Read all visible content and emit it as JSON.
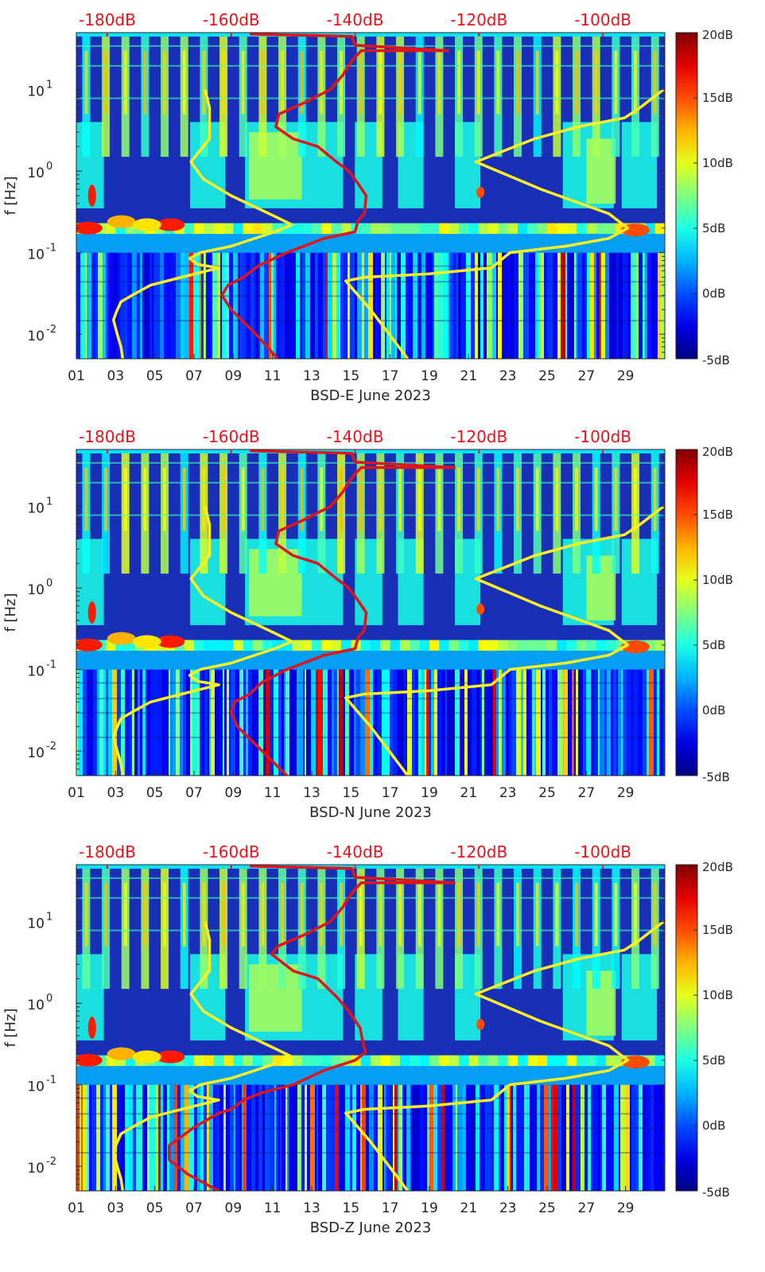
{
  "chart_data": [
    {
      "type": "heatmap",
      "xlabel": "BSD-E June 2023",
      "ylabel": "f [Hz]",
      "xticks": [
        "01",
        "03",
        "05",
        "07",
        "09",
        "11",
        "13",
        "15",
        "17",
        "19",
        "21",
        "23",
        "25",
        "27",
        "29"
      ],
      "yticks": [
        {
          "base": "10",
          "exp": "-2"
        },
        {
          "base": "10",
          "exp": "-1"
        },
        {
          "base": "10",
          "exp": "0"
        },
        {
          "base": "10",
          "exp": "1"
        }
      ],
      "yscale": "log",
      "xlim": [
        1,
        31
      ],
      "ylim": [
        0.005,
        50
      ],
      "top_axis_ticks": [
        "-180dB",
        "-160dB",
        "-140dB",
        "-120dB",
        "-100dB"
      ],
      "top_axis_range_db": [
        -185,
        -90
      ],
      "colorbar_ticks": [
        "20dB",
        "15dB",
        "10dB",
        "5dB",
        "0dB",
        "-5dB"
      ],
      "clim_db": [
        -5,
        20
      ],
      "series": [
        {
          "color": "#ffee22",
          "points": [
            [
              -177.5,
              0.005
            ],
            [
              -177.8,
              0.007
            ],
            [
              -178.4,
              0.01
            ],
            [
              -179.0,
              0.015
            ],
            [
              -178.5,
              0.019
            ],
            [
              -177.8,
              0.025
            ],
            [
              -176,
              0.03
            ],
            [
              -173,
              0.04
            ],
            [
              -168,
              0.05
            ],
            [
              -162,
              0.065
            ],
            [
              -165.5,
              0.072
            ],
            [
              -166.7,
              0.085
            ],
            [
              -165,
              0.1
            ],
            [
              -160,
              0.12
            ],
            [
              -153,
              0.18
            ],
            [
              -150.2,
              0.22
            ],
            [
              -153,
              0.28
            ],
            [
              -160,
              0.5
            ],
            [
              -164.5,
              0.8
            ],
            [
              -166.5,
              1.3
            ],
            [
              -163.5,
              2.5
            ],
            [
              -163.5,
              6
            ],
            [
              -164.2,
              10
            ]
          ]
        },
        {
          "color": "#ffee22",
          "points": [
            [
              -131.5,
              0.005
            ],
            [
              -134.5,
              0.01
            ],
            [
              -137.5,
              0.02
            ],
            [
              -141.5,
              0.045
            ],
            [
              -138.5,
              0.05
            ],
            [
              -128,
              0.055
            ],
            [
              -118,
              0.065
            ],
            [
              -115,
              0.1
            ],
            [
              -106,
              0.12
            ],
            [
              -99,
              0.15
            ],
            [
              -96,
              0.2
            ],
            [
              -99,
              0.3
            ],
            [
              -110,
              0.6
            ],
            [
              -120.5,
              1.3
            ],
            [
              -111,
              2.5
            ],
            [
              -104,
              3.5
            ],
            [
              -96.5,
              4.5
            ],
            [
              -94,
              6
            ],
            [
              -90.2,
              10
            ]
          ]
        },
        {
          "color": "#e0141a",
          "points": [
            [
              -152.5,
              0.005
            ],
            [
              -156,
              0.01
            ],
            [
              -160,
              0.02
            ],
            [
              -161.5,
              0.03
            ],
            [
              -160.5,
              0.04
            ],
            [
              -158,
              0.05
            ],
            [
              -155.5,
              0.07
            ],
            [
              -151,
              0.1
            ],
            [
              -145,
              0.15
            ],
            [
              -140,
              0.18
            ],
            [
              -139.5,
              0.25
            ],
            [
              -138.5,
              0.3
            ],
            [
              -138.2,
              0.5
            ],
            [
              -139.5,
              0.7
            ],
            [
              -141,
              1.0
            ],
            [
              -143,
              1.3
            ],
            [
              -146,
              2.0
            ],
            [
              -150,
              2.5
            ],
            [
              -152.8,
              3.5
            ],
            [
              -152.3,
              5.0
            ],
            [
              -148,
              7.0
            ],
            [
              -144,
              10
            ],
            [
              -142,
              15
            ],
            [
              -141,
              20
            ],
            [
              -140,
              25
            ],
            [
              -139,
              30
            ],
            [
              -125,
              30
            ],
            [
              -140,
              35
            ],
            [
              -140.5,
              45
            ],
            [
              -157,
              48
            ]
          ]
        }
      ]
    },
    {
      "type": "heatmap",
      "xlabel": "BSD-N June 2023",
      "ylabel": "f [Hz]",
      "xticks": [
        "01",
        "03",
        "05",
        "07",
        "09",
        "11",
        "13",
        "15",
        "17",
        "19",
        "21",
        "23",
        "25",
        "27",
        "29"
      ],
      "yticks": [
        {
          "base": "10",
          "exp": "-2"
        },
        {
          "base": "10",
          "exp": "-1"
        },
        {
          "base": "10",
          "exp": "0"
        },
        {
          "base": "10",
          "exp": "1"
        }
      ],
      "yscale": "log",
      "xlim": [
        1,
        31
      ],
      "ylim": [
        0.005,
        50
      ],
      "top_axis_ticks": [
        "-180dB",
        "-160dB",
        "-140dB",
        "-120dB",
        "-100dB"
      ],
      "top_axis_range_db": [
        -185,
        -90
      ],
      "colorbar_ticks": [
        "20dB",
        "15dB",
        "10dB",
        "5dB",
        "0dB",
        "-5dB"
      ],
      "clim_db": [
        -5,
        20
      ],
      "series": [
        {
          "color": "#ffee22",
          "points": [
            [
              -177.5,
              0.005
            ],
            [
              -177.8,
              0.007
            ],
            [
              -178.4,
              0.01
            ],
            [
              -179.0,
              0.015
            ],
            [
              -178.5,
              0.019
            ],
            [
              -177.8,
              0.025
            ],
            [
              -176,
              0.03
            ],
            [
              -173,
              0.04
            ],
            [
              -168,
              0.05
            ],
            [
              -162,
              0.065
            ],
            [
              -165.5,
              0.072
            ],
            [
              -166.7,
              0.085
            ],
            [
              -165,
              0.1
            ],
            [
              -160,
              0.12
            ],
            [
              -153,
              0.18
            ],
            [
              -150.2,
              0.22
            ],
            [
              -153,
              0.28
            ],
            [
              -160,
              0.5
            ],
            [
              -164.5,
              0.8
            ],
            [
              -166.5,
              1.3
            ],
            [
              -163.5,
              2.5
            ],
            [
              -163.5,
              6
            ],
            [
              -164.2,
              10
            ]
          ]
        },
        {
          "color": "#ffee22",
          "points": [
            [
              -131.5,
              0.005
            ],
            [
              -134.5,
              0.01
            ],
            [
              -137.5,
              0.02
            ],
            [
              -141.5,
              0.045
            ],
            [
              -138.5,
              0.05
            ],
            [
              -128,
              0.055
            ],
            [
              -118,
              0.065
            ],
            [
              -115,
              0.1
            ],
            [
              -106,
              0.12
            ],
            [
              -99,
              0.15
            ],
            [
              -96,
              0.2
            ],
            [
              -99,
              0.3
            ],
            [
              -110,
              0.6
            ],
            [
              -120.5,
              1.3
            ],
            [
              -111,
              2.5
            ],
            [
              -104,
              3.5
            ],
            [
              -96.5,
              4.5
            ],
            [
              -94,
              6
            ],
            [
              -90.2,
              10
            ]
          ]
        },
        {
          "color": "#e0141a",
          "points": [
            [
              -151,
              0.005
            ],
            [
              -155,
              0.01
            ],
            [
              -159,
              0.02
            ],
            [
              -160,
              0.03
            ],
            [
              -159.5,
              0.04
            ],
            [
              -157,
              0.05
            ],
            [
              -155,
              0.07
            ],
            [
              -151,
              0.1
            ],
            [
              -145,
              0.15
            ],
            [
              -140,
              0.18
            ],
            [
              -139.5,
              0.25
            ],
            [
              -138.5,
              0.3
            ],
            [
              -138.2,
              0.5
            ],
            [
              -139.5,
              0.7
            ],
            [
              -141,
              1.0
            ],
            [
              -143,
              1.3
            ],
            [
              -146,
              2.0
            ],
            [
              -150,
              2.5
            ],
            [
              -152.8,
              3.5
            ],
            [
              -152.3,
              5.0
            ],
            [
              -148,
              7.0
            ],
            [
              -144,
              10
            ],
            [
              -142,
              15
            ],
            [
              -141,
              20
            ],
            [
              -140,
              25
            ],
            [
              -139,
              30
            ],
            [
              -124,
              30
            ],
            [
              -140,
              35
            ],
            [
              -140.5,
              45
            ],
            [
              -157,
              48
            ]
          ]
        }
      ]
    },
    {
      "type": "heatmap",
      "xlabel": "BSD-Z June 2023",
      "ylabel": "f [Hz]",
      "xticks": [
        "01",
        "03",
        "05",
        "07",
        "09",
        "11",
        "13",
        "15",
        "17",
        "19",
        "21",
        "23",
        "25",
        "27",
        "29"
      ],
      "yticks": [
        {
          "base": "10",
          "exp": "-2"
        },
        {
          "base": "10",
          "exp": "-1"
        },
        {
          "base": "10",
          "exp": "0"
        },
        {
          "base": "10",
          "exp": "1"
        }
      ],
      "yscale": "log",
      "xlim": [
        1,
        31
      ],
      "ylim": [
        0.005,
        50
      ],
      "top_axis_ticks": [
        "-180dB",
        "-160dB",
        "-140dB",
        "-120dB",
        "-100dB"
      ],
      "top_axis_range_db": [
        -185,
        -90
      ],
      "colorbar_ticks": [
        "20dB",
        "15dB",
        "10dB",
        "5dB",
        "0dB",
        "-5dB"
      ],
      "clim_db": [
        -5,
        20
      ],
      "series": [
        {
          "color": "#ffee22",
          "points": [
            [
              -177.5,
              0.005
            ],
            [
              -177.8,
              0.007
            ],
            [
              -178.4,
              0.01
            ],
            [
              -179.0,
              0.015
            ],
            [
              -178.5,
              0.019
            ],
            [
              -177.8,
              0.025
            ],
            [
              -176,
              0.03
            ],
            [
              -173,
              0.04
            ],
            [
              -168,
              0.05
            ],
            [
              -162,
              0.065
            ],
            [
              -165.5,
              0.072
            ],
            [
              -166.7,
              0.085
            ],
            [
              -165,
              0.1
            ],
            [
              -160,
              0.12
            ],
            [
              -153,
              0.18
            ],
            [
              -150.2,
              0.22
            ],
            [
              -153,
              0.28
            ],
            [
              -160,
              0.5
            ],
            [
              -164.5,
              0.8
            ],
            [
              -166.5,
              1.3
            ],
            [
              -163.5,
              2.5
            ],
            [
              -163.5,
              6
            ],
            [
              -164.2,
              10
            ]
          ]
        },
        {
          "color": "#ffee22",
          "points": [
            [
              -131.5,
              0.005
            ],
            [
              -134.5,
              0.01
            ],
            [
              -137.5,
              0.02
            ],
            [
              -141.5,
              0.045
            ],
            [
              -138.5,
              0.05
            ],
            [
              -128,
              0.055
            ],
            [
              -118,
              0.065
            ],
            [
              -115,
              0.1
            ],
            [
              -106,
              0.12
            ],
            [
              -99,
              0.15
            ],
            [
              -96,
              0.2
            ],
            [
              -99,
              0.3
            ],
            [
              -110,
              0.6
            ],
            [
              -120.5,
              1.3
            ],
            [
              -111,
              2.5
            ],
            [
              -104,
              3.5
            ],
            [
              -96.5,
              4.5
            ],
            [
              -94,
              6
            ],
            [
              -90.2,
              10
            ]
          ]
        },
        {
          "color": "#e0141a",
          "points": [
            [
              -162,
              0.005
            ],
            [
              -167,
              0.008
            ],
            [
              -170,
              0.012
            ],
            [
              -170,
              0.018
            ],
            [
              -166,
              0.03
            ],
            [
              -162,
              0.045
            ],
            [
              -160,
              0.05
            ],
            [
              -158,
              0.065
            ],
            [
              -155,
              0.08
            ],
            [
              -150,
              0.1
            ],
            [
              -145,
              0.15
            ],
            [
              -140,
              0.2
            ],
            [
              -138.3,
              0.25
            ],
            [
              -138.8,
              0.35
            ],
            [
              -139.2,
              0.5
            ],
            [
              -141,
              0.8
            ],
            [
              -143,
              1.2
            ],
            [
              -146,
              2.0
            ],
            [
              -150,
              2.5
            ],
            [
              -153.5,
              4.0
            ],
            [
              -152.5,
              5.0
            ],
            [
              -148,
              7.0
            ],
            [
              -144,
              10
            ],
            [
              -142,
              15
            ],
            [
              -141,
              20
            ],
            [
              -140,
              25
            ],
            [
              -139,
              30
            ],
            [
              -124,
              30
            ],
            [
              -140,
              35
            ],
            [
              -140.5,
              45
            ],
            [
              -157,
              48
            ]
          ]
        }
      ]
    }
  ]
}
